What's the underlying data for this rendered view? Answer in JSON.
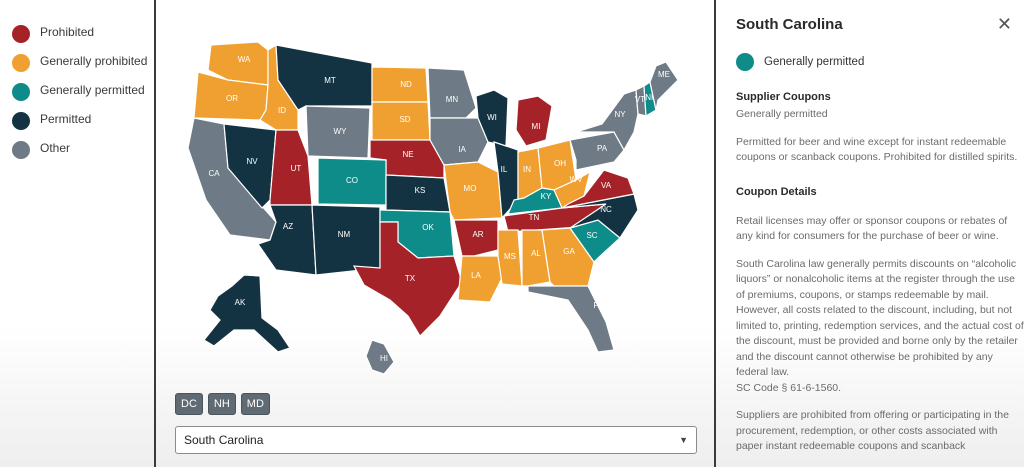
{
  "legend": {
    "items": [
      {
        "label": "Prohibited",
        "color": "#a52328"
      },
      {
        "label": "Generally prohibited",
        "color": "#f0a030"
      },
      {
        "label": "Generally permitted",
        "color": "#0e8c8a"
      },
      {
        "label": "Permitted",
        "color": "#133343"
      },
      {
        "label": "Other",
        "color": "#6e7a85"
      }
    ]
  },
  "map": {
    "states": [
      {
        "abbr": "WA",
        "status": "Generally prohibited"
      },
      {
        "abbr": "OR",
        "status": "Generally prohibited"
      },
      {
        "abbr": "ID",
        "status": "Generally prohibited"
      },
      {
        "abbr": "MT",
        "status": "Permitted"
      },
      {
        "abbr": "ND",
        "status": "Generally prohibited"
      },
      {
        "abbr": "SD",
        "status": "Generally prohibited"
      },
      {
        "abbr": "WY",
        "status": "Other"
      },
      {
        "abbr": "NE",
        "status": "Prohibited"
      },
      {
        "abbr": "CA",
        "status": "Other"
      },
      {
        "abbr": "NV",
        "status": "Permitted"
      },
      {
        "abbr": "UT",
        "status": "Prohibited"
      },
      {
        "abbr": "CO",
        "status": "Generally permitted"
      },
      {
        "abbr": "KS",
        "status": "Permitted"
      },
      {
        "abbr": "AZ",
        "status": "Permitted"
      },
      {
        "abbr": "NM",
        "status": "Permitted"
      },
      {
        "abbr": "OK",
        "status": "Generally permitted"
      },
      {
        "abbr": "TX",
        "status": "Prohibited"
      },
      {
        "abbr": "MN",
        "status": "Other"
      },
      {
        "abbr": "IA",
        "status": "Other"
      },
      {
        "abbr": "MO",
        "status": "Generally prohibited"
      },
      {
        "abbr": "AR",
        "status": "Prohibited"
      },
      {
        "abbr": "LA",
        "status": "Generally prohibited"
      },
      {
        "abbr": "WI",
        "status": "Permitted"
      },
      {
        "abbr": "IL",
        "status": "Permitted"
      },
      {
        "abbr": "MI",
        "status": "Prohibited"
      },
      {
        "abbr": "IN",
        "status": "Generally prohibited"
      },
      {
        "abbr": "OH",
        "status": "Generally prohibited"
      },
      {
        "abbr": "KY",
        "status": "Generally permitted"
      },
      {
        "abbr": "TN",
        "status": "Prohibited"
      },
      {
        "abbr": "MS",
        "status": "Generally prohibited"
      },
      {
        "abbr": "AL",
        "status": "Generally prohibited"
      },
      {
        "abbr": "GA",
        "status": "Generally prohibited"
      },
      {
        "abbr": "FL",
        "status": "Other"
      },
      {
        "abbr": "SC",
        "status": "Generally permitted"
      },
      {
        "abbr": "NC",
        "status": "Permitted"
      },
      {
        "abbr": "VA",
        "status": "Prohibited"
      },
      {
        "abbr": "WV",
        "status": "Generally prohibited"
      },
      {
        "abbr": "PA",
        "status": "Other"
      },
      {
        "abbr": "NY",
        "status": "Other"
      },
      {
        "abbr": "VT",
        "status": "Other"
      },
      {
        "abbr": "NH",
        "status": "Generally permitted"
      },
      {
        "abbr": "ME",
        "status": "Other"
      },
      {
        "abbr": "AK",
        "status": "Permitted"
      },
      {
        "abbr": "HI",
        "status": "Other"
      }
    ],
    "chips": [
      "DC",
      "NH",
      "MD"
    ],
    "select": {
      "value": "South Carolina",
      "caret": "▼"
    }
  },
  "panel": {
    "title": "South Carolina",
    "close_glyph": "✕",
    "status_label": "Generally permitted",
    "status_color": "#0e8c8a",
    "supplier_coupons_heading": "Supplier Coupons",
    "supplier_coupons_value": "Generally permitted",
    "supplier_coupons_note": "Permitted for beer and wine except for instant redeemable coupons or scanback coupons. Prohibited for distilled spirits.",
    "coupon_details_heading": "Coupon Details",
    "coupon_details_p1": "Retail licenses may offer or sponsor coupons or rebates of any kind for consumers for the purchase of beer or wine.",
    "coupon_details_p2": "South Carolina law generally permits discounts on “alcoholic liquors” or nonalcoholic items at the register through the use of premiums, coupons, or stamps redeemable by mail. However, all costs related to the discount, including, but not limited to, printing, redemption services, and the actual cost of the discount, must be provided and borne only by the retailer and the discount cannot otherwise be prohibited by any federal law.",
    "coupon_details_code": "SC Code § 61-6-1560.",
    "coupon_details_p3": "Suppliers are prohibited from offering or participating in the procurement, redemption, or other costs associated with paper instant redeemable coupons and scanback"
  }
}
